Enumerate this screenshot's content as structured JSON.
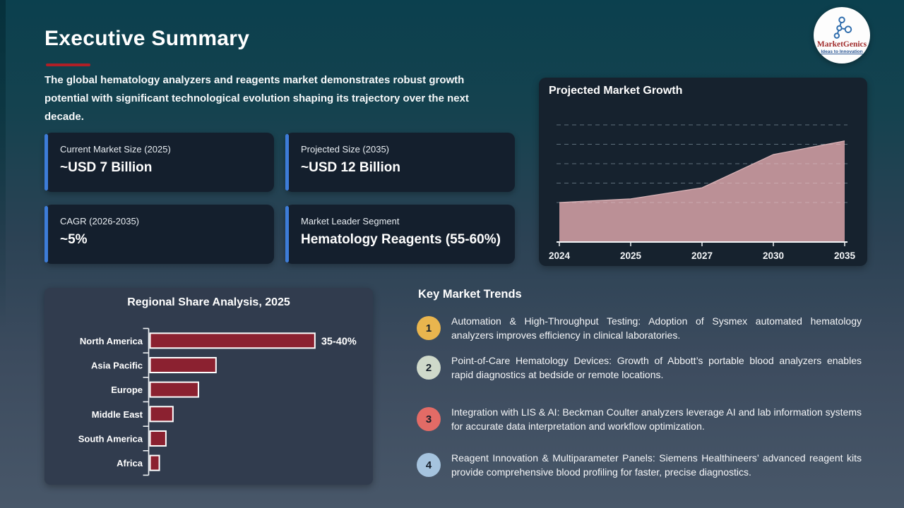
{
  "slide": {
    "title": "Executive Summary",
    "intro": "The global hematology analyzers and reagents market demonstrates robust growth potential with significant technological evolution shaping its trajectory over the next decade."
  },
  "logo": {
    "name": "MarketGenics",
    "tagline": "Ideas to Innovation"
  },
  "stat_cards": [
    {
      "label": "Current Market Size (2025)",
      "value": "~USD 7 Billion"
    },
    {
      "label": "Projected Size (2035)",
      "value": "~USD 12 Billion"
    },
    {
      "label": "CAGR (2026-2035)",
      "value": "~5%"
    },
    {
      "label": "Market Leader Segment",
      "value": "Hematology Reagents (55-60%)"
    }
  ],
  "trends": {
    "title": "Key Market Trends",
    "items": [
      {
        "number": "1",
        "circle_color": "#e9b54e",
        "text": "Automation & High-Throughput Testing: Adoption of Sysmex automated hematology analyzers improves efficiency in clinical laboratories."
      },
      {
        "number": "2",
        "circle_color": "#cfd9ca",
        "text": "Point-of-Care Hematology Devices: Growth of Abbott’s portable blood analyzers enables rapid diagnostics at bedside or remote locations."
      },
      {
        "number": "3",
        "circle_color": "#e26b66",
        "text": "Integration with LIS & AI: Beckman Coulter analyzers leverage AI and lab information systems for accurate data interpretation and workflow optimization."
      },
      {
        "number": "4",
        "circle_color": "#a5c3de",
        "text": "Reagent Innovation & Multiparameter Panels: Siemens Healthineers’ advanced reagent kits provide comprehensive blood profiling for faster, precise diagnostics."
      }
    ]
  },
  "chart_data": [
    {
      "id": "projected_market_growth",
      "type": "area",
      "title": "Projected Market Growth",
      "x": [
        "2024",
        "2025",
        "2027",
        "2030",
        "2035"
      ],
      "values": [
        6.7,
        7.0,
        7.9,
        10.6,
        11.7
      ],
      "unit": "USD Billion (estimated from shape; y-axis unlabeled)",
      "ylim": [
        3.5,
        13
      ],
      "grid": "horizontal dashed",
      "legend": "none"
    },
    {
      "id": "regional_share_analysis",
      "type": "bar",
      "orientation": "horizontal",
      "title": "Regional Share Analysis, 2025",
      "categories": [
        "North America",
        "Asia Pacific",
        "Europe",
        "Middle East",
        "South America",
        "Africa"
      ],
      "values": [
        37.5,
        15,
        11,
        5.2,
        3.6,
        2.1
      ],
      "value_labels": [
        "35-40%",
        "",
        "",
        "",
        "",
        ""
      ],
      "xlim": [
        0,
        45
      ],
      "unit": "% market share (only first bar labeled)",
      "legend": "none"
    }
  ],
  "colors": {
    "background_top": "#0b404e",
    "background_bottom": "#485769",
    "accent_blue": "#3d7cd8",
    "title_underline_red": "#b01f26",
    "stat_card_bg": "#141f2d",
    "growth_card_bg": "#16222e",
    "regional_card_bg": "#313c4e",
    "area_fill": "#bb9096",
    "area_edge": "#d9b3b7",
    "bar_fill": "#8b2130",
    "logo_name_color": "#a02b2b",
    "logo_tagline_color": "#2a5694"
  }
}
